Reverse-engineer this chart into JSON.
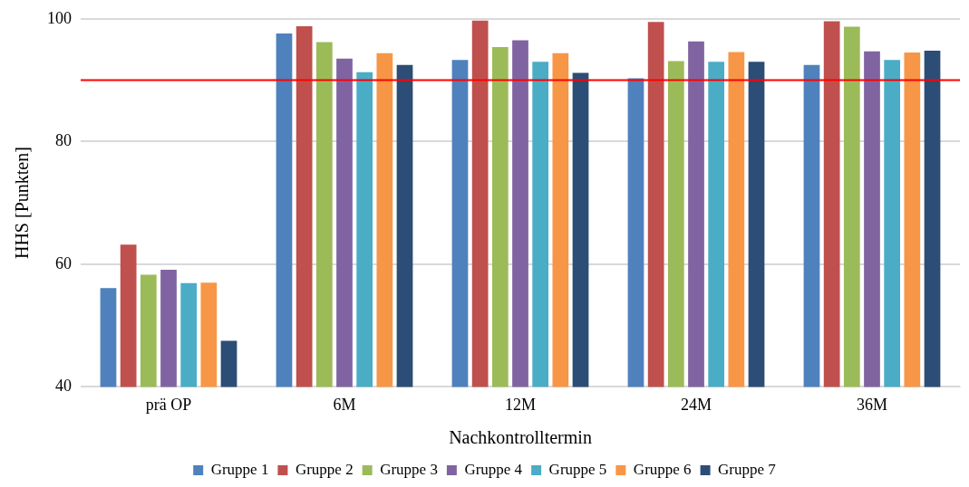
{
  "chart_data": {
    "type": "bar",
    "xlabel": "Nachkontrolltermin",
    "ylabel": "HHS [Punkten]",
    "categories": [
      "prä OP",
      "6M",
      "12M",
      "24M",
      "36M"
    ],
    "series": [
      {
        "name": "Gruppe 1",
        "color": "#4f81bd",
        "values": [
          56.1,
          97.6,
          93.3,
          90.3,
          92.5
        ]
      },
      {
        "name": "Gruppe 2",
        "color": "#c0504d",
        "values": [
          63.2,
          98.8,
          99.7,
          99.5,
          99.6
        ]
      },
      {
        "name": "Gruppe 3",
        "color": "#9bbb59",
        "values": [
          58.3,
          96.2,
          95.4,
          93.1,
          98.7
        ]
      },
      {
        "name": "Gruppe 4",
        "color": "#8064a2",
        "values": [
          59.1,
          93.5,
          96.5,
          96.3,
          94.7
        ]
      },
      {
        "name": "Gruppe 5",
        "color": "#4bacc6",
        "values": [
          56.9,
          91.3,
          93.0,
          93.0,
          93.3
        ]
      },
      {
        "name": "Gruppe 6",
        "color": "#f79646",
        "values": [
          57.0,
          94.4,
          94.4,
          94.6,
          94.5
        ]
      },
      {
        "name": "Gruppe 7",
        "color": "#2c4d75",
        "values": [
          47.5,
          92.5,
          91.2,
          93.0,
          94.8
        ]
      }
    ],
    "ylim": [
      40,
      100
    ],
    "yticks": [
      40,
      60,
      80,
      100
    ],
    "grid": "y",
    "legend": "bottom",
    "ref_lines": [
      {
        "axis": "y",
        "value": 90,
        "color": "#ff0000"
      }
    ]
  }
}
